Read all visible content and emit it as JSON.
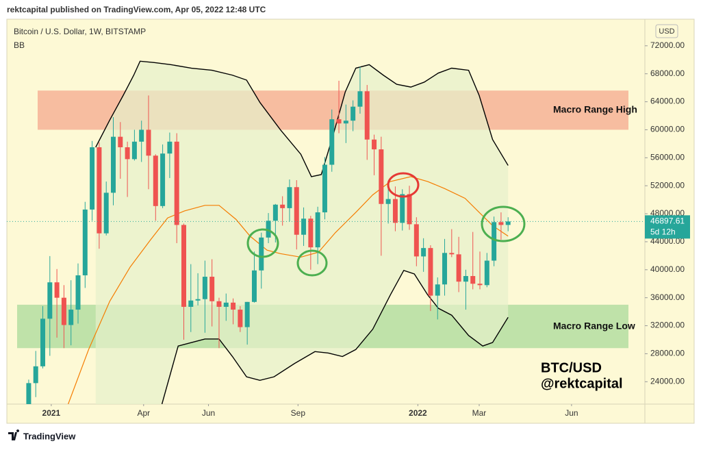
{
  "header": "rektcapital published on TradingView.com, Apr 05, 2022 12:48 UTC",
  "footer": "TradingView",
  "chart_data": {
    "type": "candlestick",
    "title": "Bitcoin / U.S. Dollar, 1W, BITSTAMP",
    "indicator": "BB",
    "currency": "USD",
    "up_color": "#26a69a",
    "down_color": "#ef5350",
    "grid": false,
    "xlim": [
      -3.1,
      87.4
    ],
    "xticks": [
      {
        "value": 3.2,
        "label": "2021"
      },
      {
        "value": 16.3,
        "label": "Apr"
      },
      {
        "value": 25.5,
        "label": "Jun"
      },
      {
        "value": 38.2,
        "label": "Sep"
      },
      {
        "value": 55.2,
        "label": "2022"
      },
      {
        "value": 63.9,
        "label": "Mar"
      },
      {
        "value": 77.0,
        "label": "Jun"
      }
    ],
    "ylim": [
      20800,
      75800
    ],
    "yticks": [
      {
        "value": 24000,
        "label": "24000.00"
      },
      {
        "value": 28000,
        "label": "28000.00"
      },
      {
        "value": 32000,
        "label": "32000.00"
      },
      {
        "value": 36000,
        "label": "36000.00"
      },
      {
        "value": 40000,
        "label": "40000.00"
      },
      {
        "value": 44000,
        "label": "44000.00"
      },
      {
        "value": 48000,
        "label": "48000.00"
      },
      {
        "value": 52000,
        "label": "52000.00"
      },
      {
        "value": 56000,
        "label": "56000.00"
      },
      {
        "value": 60000,
        "label": "60000.00"
      },
      {
        "value": 64000,
        "label": "64000.00"
      },
      {
        "value": 68000,
        "label": "68000.00"
      },
      {
        "value": 72000,
        "label": "72000.00"
      }
    ],
    "last_price": 46897.61,
    "countdown": "5d 12h",
    "candles": [
      {
        "open": 19150,
        "high": 24300,
        "low": 19000,
        "close": 23800
      },
      {
        "open": 23800,
        "high": 28400,
        "low": 21800,
        "close": 26200
      },
      {
        "open": 26200,
        "high": 34800,
        "low": 25900,
        "close": 33000
      },
      {
        "open": 33000,
        "high": 41950,
        "low": 27700,
        "close": 38200
      },
      {
        "open": 38200,
        "high": 40100,
        "low": 30300,
        "close": 36000
      },
      {
        "open": 36000,
        "high": 37800,
        "low": 28800,
        "close": 32100
      },
      {
        "open": 32100,
        "high": 38500,
        "low": 29200,
        "close": 34300
      },
      {
        "open": 34300,
        "high": 40900,
        "low": 32300,
        "close": 39200
      },
      {
        "open": 39200,
        "high": 49700,
        "low": 37400,
        "close": 48600
      },
      {
        "open": 48600,
        "high": 58400,
        "low": 47000,
        "close": 57500
      },
      {
        "open": 57500,
        "high": 58200,
        "low": 43000,
        "close": 45200
      },
      {
        "open": 45200,
        "high": 52600,
        "low": 44900,
        "close": 51000
      },
      {
        "open": 51000,
        "high": 61800,
        "low": 49200,
        "close": 59000
      },
      {
        "open": 59000,
        "high": 61100,
        "low": 53000,
        "close": 57500
      },
      {
        "open": 57500,
        "high": 58300,
        "low": 50400,
        "close": 55800
      },
      {
        "open": 55800,
        "high": 60000,
        "low": 55600,
        "close": 58300
      },
      {
        "open": 58300,
        "high": 61300,
        "low": 55400,
        "close": 60000
      },
      {
        "open": 60000,
        "high": 64900,
        "low": 51500,
        "close": 56300
      },
      {
        "open": 56300,
        "high": 56500,
        "low": 47000,
        "close": 49100
      },
      {
        "open": 49100,
        "high": 57900,
        "low": 48800,
        "close": 56600
      },
      {
        "open": 56600,
        "high": 59600,
        "low": 53100,
        "close": 58300
      },
      {
        "open": 58300,
        "high": 59500,
        "low": 43800,
        "close": 46400
      },
      {
        "open": 46400,
        "high": 46600,
        "low": 30000,
        "close": 34700
      },
      {
        "open": 34700,
        "high": 40800,
        "low": 31100,
        "close": 35600
      },
      {
        "open": 35600,
        "high": 39500,
        "low": 34900,
        "close": 35800
      },
      {
        "open": 35800,
        "high": 41300,
        "low": 31000,
        "close": 39000
      },
      {
        "open": 39000,
        "high": 41500,
        "low": 31900,
        "close": 35500
      },
      {
        "open": 35500,
        "high": 36000,
        "low": 28800,
        "close": 34700
      },
      {
        "open": 34700,
        "high": 36600,
        "low": 32700,
        "close": 35300
      },
      {
        "open": 35300,
        "high": 35900,
        "low": 32200,
        "close": 34300
      },
      {
        "open": 34300,
        "high": 34800,
        "low": 31100,
        "close": 31800
      },
      {
        "open": 31800,
        "high": 35400,
        "low": 29300,
        "close": 35400
      },
      {
        "open": 35400,
        "high": 42600,
        "low": 35300,
        "close": 39900
      },
      {
        "open": 39900,
        "high": 45300,
        "low": 37300,
        "close": 44600
      },
      {
        "open": 44600,
        "high": 48100,
        "low": 43800,
        "close": 47000
      },
      {
        "open": 47000,
        "high": 49400,
        "low": 43900,
        "close": 49300
      },
      {
        "open": 49300,
        "high": 50500,
        "low": 46300,
        "close": 48800
      },
      {
        "open": 48800,
        "high": 52900,
        "low": 46900,
        "close": 51800
      },
      {
        "open": 51800,
        "high": 52800,
        "low": 42900,
        "close": 45000
      },
      {
        "open": 45000,
        "high": 48900,
        "low": 43400,
        "close": 47300
      },
      {
        "open": 47300,
        "high": 47700,
        "low": 40000,
        "close": 43200
      },
      {
        "open": 43200,
        "high": 49000,
        "low": 40800,
        "close": 48200
      },
      {
        "open": 48200,
        "high": 56100,
        "low": 47200,
        "close": 55000
      },
      {
        "open": 55000,
        "high": 62900,
        "low": 54000,
        "close": 61500
      },
      {
        "open": 61500,
        "high": 67000,
        "low": 59500,
        "close": 60900
      },
      {
        "open": 60900,
        "high": 63600,
        "low": 58100,
        "close": 61300
      },
      {
        "open": 61300,
        "high": 64200,
        "low": 59800,
        "close": 63300
      },
      {
        "open": 63300,
        "high": 69000,
        "low": 62300,
        "close": 65500
      },
      {
        "open": 65500,
        "high": 66400,
        "low": 55700,
        "close": 58600
      },
      {
        "open": 58600,
        "high": 59300,
        "low": 53500,
        "close": 57200
      },
      {
        "open": 57200,
        "high": 59000,
        "low": 42000,
        "close": 49400
      },
      {
        "open": 49400,
        "high": 51900,
        "low": 46600,
        "close": 50100
      },
      {
        "open": 50100,
        "high": 51900,
        "low": 45500,
        "close": 46700
      },
      {
        "open": 46700,
        "high": 51500,
        "low": 45600,
        "close": 50800
      },
      {
        "open": 50800,
        "high": 52000,
        "low": 45700,
        "close": 46500
      },
      {
        "open": 46500,
        "high": 47500,
        "low": 40500,
        "close": 41900
      },
      {
        "open": 41900,
        "high": 44500,
        "low": 39700,
        "close": 43100
      },
      {
        "open": 43100,
        "high": 43500,
        "low": 34100,
        "close": 36300
      },
      {
        "open": 36300,
        "high": 38900,
        "low": 32900,
        "close": 37900
      },
      {
        "open": 37900,
        "high": 44400,
        "low": 36300,
        "close": 42400
      },
      {
        "open": 42400,
        "high": 45800,
        "low": 41800,
        "close": 42200
      },
      {
        "open": 42200,
        "high": 44700,
        "low": 36800,
        "close": 38300
      },
      {
        "open": 38300,
        "high": 40000,
        "low": 34300,
        "close": 39100
      },
      {
        "open": 39100,
        "high": 45400,
        "low": 37200,
        "close": 38000
      },
      {
        "open": 38000,
        "high": 42600,
        "low": 37200,
        "close": 37800
      },
      {
        "open": 37800,
        "high": 42400,
        "low": 37500,
        "close": 41300
      },
      {
        "open": 41300,
        "high": 47600,
        "low": 40500,
        "close": 46800
      },
      {
        "open": 46800,
        "high": 48200,
        "low": 44300,
        "close": 46400
      },
      {
        "open": 46400,
        "high": 47500,
        "low": 45500,
        "close": 46897.61
      }
    ],
    "band_fill": "#e6f1cb",
    "bands": [
      {
        "color": "#000000",
        "x": [
          9.5,
          11.5,
          13.4,
          14.9,
          15.8,
          17.8,
          20.2,
          23.1,
          26.0,
          28.9,
          30.9,
          32.8,
          35.7,
          38.6,
          40.1,
          41.5,
          43.0,
          44.9,
          46.4,
          48.3,
          50.3,
          52.2,
          54.2,
          56.1,
          58.1,
          60.0,
          62.4,
          63.9,
          65.8,
          68.0
        ],
        "values": [
          57500,
          61400,
          64900,
          67800,
          69800,
          69600,
          69300,
          68800,
          68500,
          67800,
          67100,
          63900,
          60000,
          56500,
          53300,
          53600,
          58600,
          65400,
          68800,
          69300,
          67800,
          66500,
          66100,
          66800,
          68100,
          68800,
          68500,
          64900,
          58600,
          54900
        ]
      },
      {
        "color": "#f57c00",
        "x": [
          5.6,
          8.5,
          11.5,
          14.4,
          17.3,
          19.7,
          22.1,
          25.0,
          27.0,
          29.4,
          31.4,
          33.8,
          35.7,
          38.6,
          41.1,
          43.5,
          46.4,
          48.8,
          51.3,
          54.2,
          56.6,
          59.0,
          61.9,
          63.9,
          65.8,
          68.0
        ],
        "values": [
          20800,
          28600,
          35500,
          40400,
          44300,
          47400,
          48400,
          49200,
          49200,
          47200,
          44800,
          42800,
          42300,
          41800,
          42500,
          45300,
          48200,
          50700,
          52600,
          53300,
          52600,
          51600,
          50200,
          48200,
          46300,
          44800
        ]
      },
      {
        "color": "#000000",
        "x": [
          18.9,
          21.2,
          23.1,
          25.0,
          27.0,
          28.9,
          30.9,
          32.8,
          34.8,
          37.7,
          40.6,
          42.5,
          44.5,
          46.4,
          48.8,
          51.3,
          53.2,
          54.7,
          56.6,
          58.1,
          60.0,
          62.4,
          64.4,
          65.8,
          68.0
        ],
        "values": [
          20800,
          29100,
          29600,
          30100,
          30100,
          27600,
          24700,
          24200,
          24700,
          26600,
          28300,
          28100,
          27600,
          28600,
          31500,
          36400,
          39900,
          39400,
          36400,
          34500,
          33500,
          30600,
          29100,
          29600,
          33200
        ]
      }
    ],
    "zones": [
      {
        "label": "Macro Range High",
        "low": 60000,
        "high": 65600,
        "color": "#f4a88e"
      },
      {
        "label": "Macro Range Low",
        "low": 28800,
        "high": 35000,
        "color": "#a9d99a"
      }
    ],
    "annotations": [
      "BTC/USD",
      "@rektcapital"
    ]
  }
}
